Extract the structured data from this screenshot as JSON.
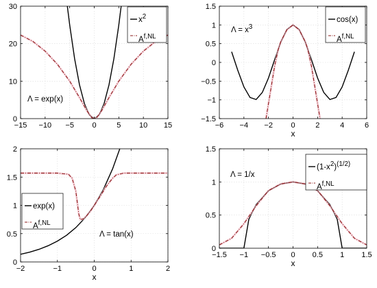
{
  "chart_data": [
    {
      "type": "line",
      "xlabel": "",
      "annotation": "Λ = exp(x)",
      "xlim": [
        -15,
        15
      ],
      "ylim": [
        0,
        30
      ],
      "xticks": [
        -15,
        -10,
        -5,
        0,
        5,
        10,
        15
      ],
      "yticks": [
        0,
        10,
        20,
        30
      ],
      "grid": true,
      "legend_position": "top-right",
      "series": [
        {
          "name": "x^2",
          "style": "solid",
          "color": "#000000",
          "x": [
            -5.48,
            -5,
            -4,
            -3,
            -2,
            -1,
            0,
            1,
            2,
            3,
            4,
            5,
            5.48
          ],
          "y": [
            30,
            25,
            16,
            9,
            4,
            1,
            0,
            1,
            4,
            9,
            16,
            25,
            30
          ]
        },
        {
          "name": "A^{f,NL}",
          "style": "dashdot",
          "color": "#8b1a1a",
          "x": [
            -15,
            -12.5,
            -10,
            -7.5,
            -5,
            -3,
            -1.5,
            -0.5,
            0,
            0.5,
            1.5,
            3,
            5,
            7.5,
            10,
            12.5,
            15
          ],
          "y": [
            22.3,
            20.6,
            18.0,
            14.5,
            10.0,
            5.6,
            2.1,
            0.25,
            0,
            0.25,
            2.1,
            5.6,
            10.0,
            14.5,
            18.0,
            20.6,
            22.3
          ]
        }
      ]
    },
    {
      "type": "line",
      "xlabel": "x",
      "annotation": "Λ = x^3",
      "xlim": [
        -6,
        6
      ],
      "ylim": [
        -1.5,
        1.5
      ],
      "xticks": [
        -6,
        -4,
        -2,
        0,
        2,
        4,
        6
      ],
      "yticks": [
        -1.5,
        -1,
        -0.5,
        0,
        0.5,
        1,
        1.5
      ],
      "grid": true,
      "legend_position": "top-right",
      "series": [
        {
          "name": "cos(x)",
          "style": "solid",
          "color": "#000000",
          "x": [
            -5,
            -4.5,
            -4,
            -3.5,
            -3,
            -2.5,
            -2,
            -1.5,
            -1,
            -0.5,
            0,
            0.5,
            1,
            1.5,
            2,
            2.5,
            3,
            3.5,
            4,
            4.5,
            5
          ],
          "y": [
            0.284,
            -0.211,
            -0.654,
            -0.936,
            -0.99,
            -0.801,
            -0.416,
            0.071,
            0.54,
            0.878,
            1,
            0.878,
            0.54,
            0.071,
            -0.416,
            -0.801,
            -0.99,
            -0.936,
            -0.654,
            -0.211,
            0.284
          ]
        },
        {
          "name": "A^{f,NL}",
          "style": "dashdot",
          "color": "#8b1a1a",
          "x": [
            -2.2,
            -2.0,
            -1.8,
            -1.5,
            -1.2,
            -1,
            -0.5,
            0,
            0.5,
            1,
            1.2,
            1.5,
            1.8,
            2.0,
            2.2
          ],
          "y": [
            -1.5,
            -1.1,
            -0.7,
            -0.1,
            0.35,
            0.55,
            0.87,
            1,
            0.87,
            0.55,
            0.35,
            -0.1,
            -0.7,
            -1.1,
            -1.5
          ]
        }
      ]
    },
    {
      "type": "line",
      "xlabel": "x",
      "annotation": "Λ = tan(x)",
      "xlim": [
        -2,
        2
      ],
      "ylim": [
        0,
        2
      ],
      "xticks": [
        -2,
        -1,
        0,
        1,
        2
      ],
      "yticks": [
        0,
        0.5,
        1,
        1.5,
        2
      ],
      "grid": true,
      "legend_position": "center-left",
      "series": [
        {
          "name": "exp(x)",
          "style": "solid",
          "color": "#000000",
          "x": [
            -2,
            -1.75,
            -1.5,
            -1.25,
            -1,
            -0.75,
            -0.5,
            -0.25,
            0,
            0.25,
            0.5,
            0.693
          ],
          "y": [
            0.135,
            0.174,
            0.223,
            0.287,
            0.368,
            0.472,
            0.607,
            0.779,
            1,
            1.284,
            1.649,
            2
          ]
        },
        {
          "name": "A^{f,NL}",
          "style": "dashdot",
          "color": "#8b1a1a",
          "x": [
            -2,
            -1.0,
            -0.7,
            -0.6,
            -0.5,
            -0.42,
            -0.38,
            -0.3,
            -0.2,
            -0.1,
            0,
            0.1,
            0.2,
            0.3,
            0.4,
            0.5,
            0.6,
            0.8,
            2
          ],
          "y": [
            1.57,
            1.57,
            1.55,
            1.48,
            1.25,
            0.85,
            0.75,
            0.76,
            0.82,
            0.9,
            1.0,
            1.1,
            1.2,
            1.31,
            1.4,
            1.48,
            1.54,
            1.57,
            1.57
          ]
        }
      ]
    },
    {
      "type": "line",
      "xlabel": "x",
      "annotation": "Λ = 1/x",
      "xlim": [
        -1.5,
        1.5
      ],
      "ylim": [
        0,
        1.5
      ],
      "xticks": [
        -1.5,
        -1,
        -0.5,
        0,
        0.5,
        1,
        1.5
      ],
      "yticks": [
        0,
        0.5,
        1,
        1.5
      ],
      "grid": true,
      "legend_position": "top-right",
      "series": [
        {
          "name": "(1-x^2)^{(1/2)}",
          "style": "solid",
          "color": "#000000",
          "x": [
            -1.5,
            -1,
            -1,
            -0.9,
            -0.75,
            -0.5,
            -0.25,
            0,
            0.25,
            0.5,
            0.75,
            0.9,
            1,
            1,
            1.5
          ],
          "y": [
            0,
            0,
            0,
            0.436,
            0.661,
            0.866,
            0.968,
            1,
            0.968,
            0.866,
            0.661,
            0.436,
            0,
            0,
            0
          ]
        },
        {
          "name": "A^{f,NL}",
          "style": "dashdot",
          "color": "#8b1a1a",
          "x": [
            -1.5,
            -1.25,
            -1,
            -0.75,
            -0.5,
            -0.25,
            0,
            0.25,
            0.5,
            0.75,
            1,
            1.25,
            1.5
          ],
          "y": [
            0.05,
            0.15,
            0.37,
            0.64,
            0.87,
            0.97,
            1,
            0.97,
            0.87,
            0.64,
            0.37,
            0.15,
            0.05
          ]
        }
      ]
    }
  ]
}
